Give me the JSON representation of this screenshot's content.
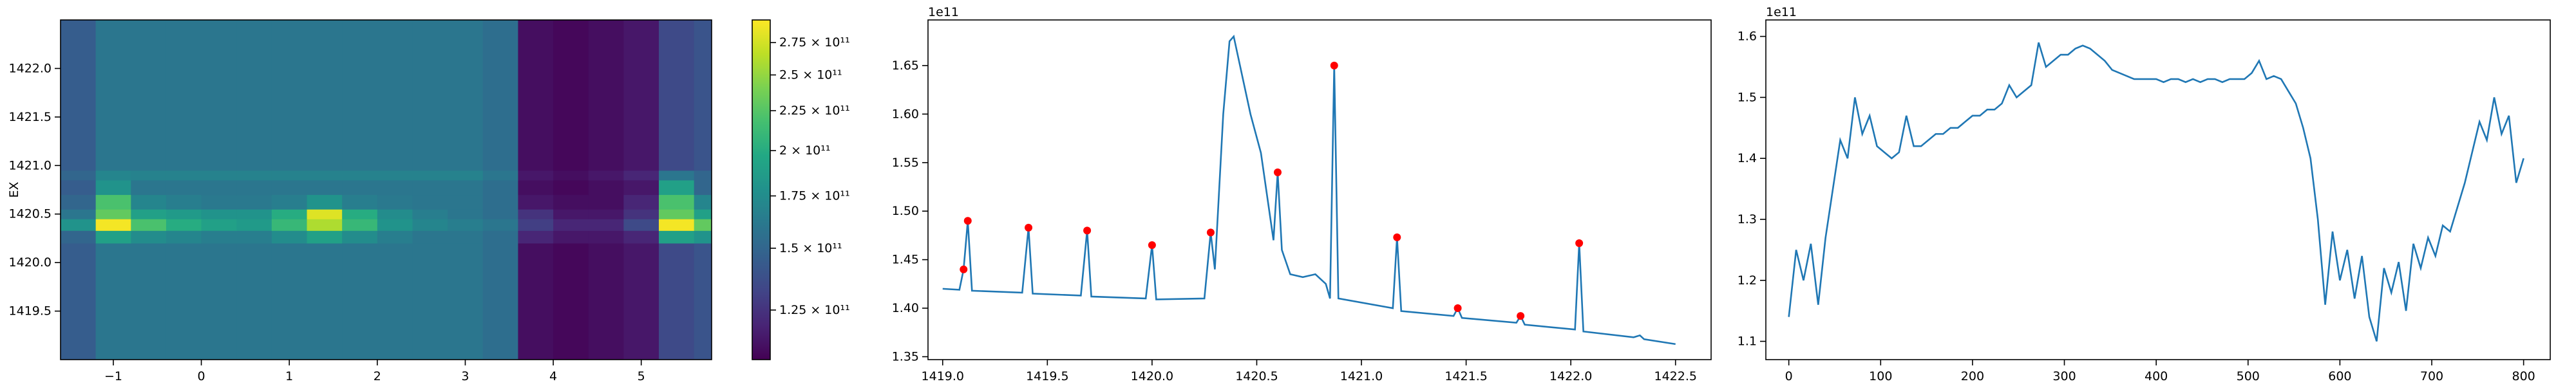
{
  "chart_data": [
    {
      "type": "heatmap",
      "ylabel": "EX",
      "colormap": "viridis",
      "x_edges": [
        -1.6,
        -1.2,
        -0.8,
        -0.4,
        0,
        0.4,
        0.8,
        1.2,
        1.6,
        2.0,
        2.4,
        2.8,
        3.2,
        3.6,
        4.0,
        4.4,
        4.8,
        5.2,
        5.6,
        5.8
      ],
      "y_edges": [
        1419.0,
        1420.2,
        1420.33,
        1420.45,
        1420.55,
        1420.7,
        1420.85,
        1420.95,
        1422.5
      ],
      "z": [
        [
          145000000000.0,
          160000000000.0,
          160000000000.0,
          160000000000.0,
          160000000000.0,
          160000000000.0,
          160000000000.0,
          160000000000.0,
          160000000000.0,
          160000000000.0,
          160000000000.0,
          160000000000.0,
          155000000000.0,
          112000000000.0,
          110000000000.0,
          112000000000.0,
          115000000000.0,
          135000000000.0,
          140000000000.0
        ],
        [
          150000000000.0,
          190000000000.0,
          175000000000.0,
          170000000000.0,
          165000000000.0,
          165000000000.0,
          175000000000.0,
          190000000000.0,
          175000000000.0,
          165000000000.0,
          160000000000.0,
          160000000000.0,
          155000000000.0,
          120000000000.0,
          115000000000.0,
          115000000000.0,
          120000000000.0,
          190000000000.0,
          180000000000.0
        ],
        [
          180000000000.0,
          290000000000.0,
          220000000000.0,
          200000000000.0,
          190000000000.0,
          185000000000.0,
          210000000000.0,
          260000000000.0,
          210000000000.0,
          180000000000.0,
          170000000000.0,
          165000000000.0,
          160000000000.0,
          130000000000.0,
          120000000000.0,
          120000000000.0,
          135000000000.0,
          290000000000.0,
          230000000000.0
        ],
        [
          160000000000.0,
          230000000000.0,
          190000000000.0,
          185000000000.0,
          180000000000.0,
          180000000000.0,
          200000000000.0,
          280000000000.0,
          200000000000.0,
          175000000000.0,
          165000000000.0,
          160000000000.0,
          155000000000.0,
          125000000000.0,
          115000000000.0,
          115000000000.0,
          125000000000.0,
          230000000000.0,
          190000000000.0
        ],
        [
          150000000000.0,
          220000000000.0,
          170000000000.0,
          165000000000.0,
          162000000000.0,
          162000000000.0,
          165000000000.0,
          180000000000.0,
          165000000000.0,
          162000000000.0,
          160000000000.0,
          160000000000.0,
          155000000000.0,
          115000000000.0,
          112000000000.0,
          112000000000.0,
          120000000000.0,
          220000000000.0,
          170000000000.0
        ],
        [
          145000000000.0,
          180000000000.0,
          160000000000.0,
          160000000000.0,
          160000000000.0,
          160000000000.0,
          160000000000.0,
          160000000000.0,
          160000000000.0,
          160000000000.0,
          160000000000.0,
          160000000000.0,
          155000000000.0,
          112000000000.0,
          110000000000.0,
          112000000000.0,
          115000000000.0,
          190000000000.0,
          150000000000.0
        ],
        [
          150000000000.0,
          170000000000.0,
          168000000000.0,
          168000000000.0,
          168000000000.0,
          168000000000.0,
          168000000000.0,
          168000000000.0,
          168000000000.0,
          168000000000.0,
          168000000000.0,
          168000000000.0,
          160000000000.0,
          115000000000.0,
          112000000000.0,
          115000000000.0,
          120000000000.0,
          160000000000.0,
          150000000000.0
        ],
        [
          145000000000.0,
          160000000000.0,
          160000000000.0,
          160000000000.0,
          160000000000.0,
          160000000000.0,
          160000000000.0,
          160000000000.0,
          160000000000.0,
          160000000000.0,
          160000000000.0,
          160000000000.0,
          155000000000.0,
          112000000000.0,
          110000000000.0,
          112000000000.0,
          115000000000.0,
          135000000000.0,
          140000000000.0
        ]
      ],
      "xlim": [
        -1.6,
        5.8
      ],
      "ylim": [
        1419.0,
        1422.5
      ],
      "xticks": [
        {
          "value": -1,
          "label": "−1"
        },
        0,
        1,
        2,
        3,
        4,
        5
      ],
      "yticks": [
        {
          "value": 1419.5,
          "label": "1419.5"
        },
        {
          "value": 1420,
          "label": "1420.0"
        },
        {
          "value": 1420.5,
          "label": "1420.5"
        },
        {
          "value": 1421,
          "label": "1421.0"
        },
        {
          "value": 1421.5,
          "label": "1421.5"
        },
        {
          "value": 1422,
          "label": "1422.0"
        }
      ],
      "colorbar": {
        "clim": [
          108000000000.0,
          294000000000.0
        ],
        "scale": "log",
        "ticks": [
          {
            "value": 125000000000.0,
            "label": "1.25 × 10¹¹"
          },
          {
            "value": 150000000000.0,
            "label": "1.5 × 10¹¹"
          },
          {
            "value": 175000000000.0,
            "label": "1.75 × 10¹¹"
          },
          {
            "value": 200000000000.0,
            "label": "2 × 10¹¹"
          },
          {
            "value": 225000000000.0,
            "label": "2.25 × 10¹¹"
          },
          {
            "value": 250000000000.0,
            "label": "2.5 × 10¹¹"
          },
          {
            "value": 275000000000.0,
            "label": "2.75 × 10¹¹"
          }
        ]
      }
    },
    {
      "type": "line",
      "offset_text": "1e11",
      "series": [
        {
          "color": "#1f77b4",
          "type": "line",
          "x": [
            1419.0,
            1419.08,
            1419.1,
            1419.12,
            1419.14,
            1419.38,
            1419.41,
            1419.43,
            1419.66,
            1419.69,
            1419.71,
            1419.97,
            1420.0,
            1420.02,
            1420.25,
            1420.28,
            1420.3,
            1420.34,
            1420.37,
            1420.39,
            1420.42,
            1420.47,
            1420.52,
            1420.56,
            1420.58,
            1420.6,
            1420.62,
            1420.66,
            1420.72,
            1420.78,
            1420.83,
            1420.85,
            1420.87,
            1420.89,
            1421.15,
            1421.17,
            1421.19,
            1421.44,
            1421.46,
            1421.48,
            1421.74,
            1421.76,
            1421.78,
            1422.02,
            1422.04,
            1422.06,
            1422.3,
            1422.33,
            1422.35,
            1422.5
          ],
          "values": [
            1.42,
            1.419,
            1.44,
            1.49,
            1.418,
            1.416,
            1.483,
            1.415,
            1.413,
            1.48,
            1.412,
            1.41,
            1.465,
            1.409,
            1.41,
            1.478,
            1.44,
            1.6,
            1.675,
            1.68,
            1.65,
            1.6,
            1.56,
            1.5,
            1.47,
            1.54,
            1.46,
            1.435,
            1.432,
            1.435,
            1.425,
            1.41,
            1.65,
            1.41,
            1.4,
            1.473,
            1.397,
            1.392,
            1.4,
            1.39,
            1.385,
            1.392,
            1.383,
            1.378,
            1.467,
            1.376,
            1.37,
            1.372,
            1.368,
            1.363
          ]
        },
        {
          "color": "red",
          "type": "scatter",
          "x": [
            1419.1,
            1419.12,
            1419.41,
            1419.69,
            1420.0,
            1420.28,
            1420.6,
            1420.87,
            1421.17,
            1421.46,
            1421.76,
            1422.04
          ],
          "values": [
            1.44,
            1.49,
            1.483,
            1.48,
            1.465,
            1.478,
            1.54,
            1.65,
            1.473,
            1.4,
            1.392,
            1.467
          ]
        }
      ],
      "xlim": [
        1418.93,
        1422.67
      ],
      "ylim": [
        1.347,
        1.697
      ],
      "xticks": [
        {
          "value": 1419,
          "label": "1419.0"
        },
        1419.5,
        {
          "value": 1420,
          "label": "1420.0"
        },
        1420.5,
        {
          "value": 1421,
          "label": "1421.0"
        },
        1421.5,
        {
          "value": 1422,
          "label": "1422.0"
        },
        1422.5
      ],
      "yticks": [
        1.35,
        {
          "value": 1.4,
          "label": "1.40"
        },
        1.45,
        {
          "value": 1.5,
          "label": "1.50"
        },
        1.55,
        {
          "value": 1.6,
          "label": "1.60"
        },
        1.65
      ]
    },
    {
      "type": "line",
      "offset_text": "1e11",
      "series": [
        {
          "color": "#1f77b4",
          "type": "line",
          "x": [
            0,
            8,
            16,
            24,
            32,
            40,
            48,
            56,
            64,
            72,
            80,
            88,
            96,
            104,
            112,
            120,
            128,
            136,
            144,
            152,
            160,
            168,
            176,
            184,
            192,
            200,
            208,
            216,
            224,
            232,
            240,
            248,
            256,
            264,
            272,
            280,
            288,
            296,
            304,
            312,
            320,
            328,
            336,
            344,
            352,
            360,
            368,
            376,
            384,
            392,
            400,
            408,
            416,
            424,
            432,
            440,
            448,
            456,
            464,
            472,
            480,
            488,
            496,
            504,
            512,
            520,
            528,
            536,
            544,
            552,
            560,
            568,
            576,
            584,
            592,
            600,
            608,
            616,
            624,
            632,
            640,
            648,
            656,
            664,
            672,
            680,
            688,
            696,
            704,
            712,
            720,
            728,
            736,
            744,
            752,
            760,
            768,
            776,
            784,
            792,
            800
          ],
          "values": [
            1.14,
            1.25,
            1.2,
            1.26,
            1.16,
            1.27,
            1.35,
            1.43,
            1.4,
            1.5,
            1.44,
            1.47,
            1.42,
            1.41,
            1.4,
            1.41,
            1.47,
            1.42,
            1.42,
            1.43,
            1.44,
            1.44,
            1.45,
            1.45,
            1.46,
            1.47,
            1.47,
            1.48,
            1.48,
            1.49,
            1.52,
            1.5,
            1.51,
            1.52,
            1.59,
            1.55,
            1.56,
            1.57,
            1.57,
            1.58,
            1.585,
            1.58,
            1.57,
            1.56,
            1.545,
            1.54,
            1.535,
            1.53,
            1.53,
            1.53,
            1.53,
            1.525,
            1.53,
            1.53,
            1.525,
            1.53,
            1.525,
            1.53,
            1.53,
            1.525,
            1.53,
            1.53,
            1.53,
            1.54,
            1.56,
            1.53,
            1.535,
            1.53,
            1.51,
            1.49,
            1.45,
            1.4,
            1.3,
            1.16,
            1.28,
            1.2,
            1.25,
            1.17,
            1.24,
            1.14,
            1.1,
            1.22,
            1.18,
            1.23,
            1.15,
            1.26,
            1.22,
            1.27,
            1.24,
            1.29,
            1.28,
            1.32,
            1.36,
            1.41,
            1.46,
            1.43,
            1.5,
            1.44,
            1.47,
            1.36,
            1.4
          ]
        }
      ],
      "xlim": [
        -25,
        829
      ],
      "ylim": [
        1.07,
        1.627
      ],
      "xticks": [
        0,
        100,
        200,
        300,
        400,
        500,
        600,
        700,
        800
      ],
      "yticks": [
        1.1,
        1.2,
        1.3,
        1.4,
        1.5,
        1.6
      ]
    }
  ]
}
